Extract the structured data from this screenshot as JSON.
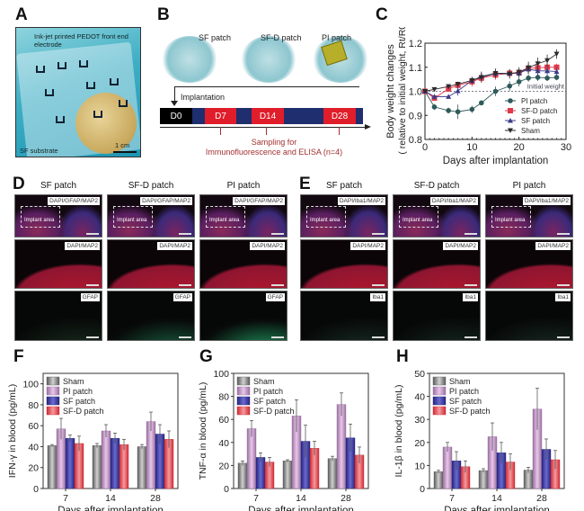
{
  "panels": {
    "A": {
      "letter": "A",
      "label_electrode": "Ink-jet printed PEDOT front end electrode",
      "label_substrate": "SF substrate",
      "scale_bar": "1 cm"
    },
    "B": {
      "letter": "B",
      "patches": [
        "SF patch",
        "SF-D patch",
        "PI patch"
      ],
      "implantation": "Implantation",
      "timeline": [
        "D0",
        "D7",
        "D14",
        "D28"
      ],
      "sampling_line1": "Sampling for",
      "sampling_line2": "Immunofluorescence and ELISA (n=4)"
    },
    "D": {
      "letter": "D",
      "columns": [
        "SF patch",
        "SF-D patch",
        "PI patch"
      ],
      "row_tags": [
        "DAPI/GFAP/MAP2",
        "DAPI/MAP2",
        "GFAP"
      ],
      "implant_label": "Implant area"
    },
    "E": {
      "letter": "E",
      "columns": [
        "SF patch",
        "SF-D patch",
        "PI patch"
      ],
      "row_tags": [
        "DAPI/Iba1/MAP2",
        "DAPI/MAP2",
        "Iba1"
      ],
      "implant_label": "Implant area"
    }
  },
  "colors": {
    "sham": "#8a8a8a",
    "pi": "#c9a3cc",
    "sf": "#3a3a9e",
    "sfd": "#e8474f",
    "pi_line": "#2f5a5a",
    "sfd_line": "#e0394a",
    "sf_line": "#3b3b8a",
    "sham_line": "#2b2b2b",
    "timeline_blue": "#1e2e6e",
    "timeline_red": "#e01d2a",
    "sampling_text": "#a33030"
  },
  "chart_data": [
    {
      "id": "C",
      "letter": "C",
      "type": "line",
      "title": "",
      "xlabel": "Days after implantation",
      "ylabel": "Body weight changes",
      "ylabel2": "( relative to initial weight, Rt/R0)",
      "xlim": [
        0,
        30
      ],
      "ylim": [
        0.8,
        1.2
      ],
      "xticks": [
        0,
        10,
        20,
        30
      ],
      "yticks": [
        0.8,
        0.9,
        1.0,
        1.1,
        1.2
      ],
      "ytick_labels": [
        "0.8",
        "0.9",
        "1.0",
        "1.1",
        "1.2"
      ],
      "reference_line": {
        "y": 1.0,
        "label": "Initial weight"
      },
      "legend": "bottom-right",
      "x": [
        0,
        2,
        5,
        7,
        10,
        12,
        15,
        18,
        20,
        22,
        24,
        26,
        28
      ],
      "series": [
        {
          "name": "PI patch",
          "marker": "circle",
          "values": [
            1.0,
            0.935,
            0.92,
            0.915,
            0.925,
            0.952,
            1.0,
            1.022,
            1.04,
            1.055,
            1.058,
            1.055,
            1.058
          ],
          "err": [
            0,
            0.012,
            0.012,
            0.03,
            0.015,
            0.008,
            0.02,
            0.02,
            0.02,
            0.015,
            0.015,
            0.012,
            0.012
          ]
        },
        {
          "name": "SF-D patch",
          "marker": "square",
          "values": [
            1.0,
            0.972,
            1.01,
            1.025,
            1.04,
            1.055,
            1.068,
            1.075,
            1.078,
            1.095,
            1.098,
            1.1,
            1.1
          ],
          "err": [
            0,
            0.012,
            0.012,
            0.015,
            0.02,
            0.02,
            0.02,
            0.015,
            0.015,
            0.02,
            0.02,
            0.015,
            0.015
          ]
        },
        {
          "name": "SF patch",
          "marker": "triangle-up",
          "values": [
            1.0,
            0.978,
            0.978,
            1.002,
            1.045,
            1.062,
            1.075,
            1.075,
            1.075,
            1.092,
            1.085,
            1.085,
            1.082
          ],
          "err": [
            0,
            0.01,
            0.008,
            0.02,
            0.015,
            0.02,
            0.015,
            0.015,
            0.015,
            0.02,
            0.02,
            0.02,
            0.015
          ]
        },
        {
          "name": "Sham",
          "marker": "triangle-down",
          "values": [
            1.0,
            1.008,
            1.02,
            1.03,
            1.045,
            1.058,
            1.075,
            1.072,
            1.08,
            1.098,
            1.115,
            1.128,
            1.155
          ],
          "err": [
            0,
            0.008,
            0.01,
            0.01,
            0.015,
            0.02,
            0.02,
            0.02,
            0.02,
            0.025,
            0.025,
            0.025,
            0.02
          ]
        }
      ]
    },
    {
      "id": "F",
      "letter": "F",
      "type": "bar",
      "categories": [
        "7",
        "14",
        "28"
      ],
      "xlabel": "Days after implantation",
      "ylabel": "IFN-γ in blood (pg/mL)",
      "ylim": [
        0,
        110
      ],
      "yticks": [
        0,
        20,
        40,
        60,
        80,
        100
      ],
      "legend": "top-left",
      "series": [
        {
          "name": "Sham",
          "values": [
            41,
            41,
            40
          ],
          "err": [
            1,
            2,
            2
          ]
        },
        {
          "name": "PI patch",
          "values": [
            57,
            55,
            64
          ],
          "err": [
            10,
            6,
            9
          ]
        },
        {
          "name": "SF patch",
          "values": [
            48,
            48,
            52
          ],
          "err": [
            3,
            5,
            9
          ]
        },
        {
          "name": "SF-D patch",
          "values": [
            43,
            42,
            47
          ],
          "err": [
            7,
            5,
            8
          ]
        }
      ]
    },
    {
      "id": "G",
      "letter": "G",
      "type": "bar",
      "categories": [
        "7",
        "14",
        "28"
      ],
      "xlabel": "Days after implantation",
      "ylabel": "TNF-α in blood (pg/mL)",
      "ylim": [
        0,
        100
      ],
      "yticks": [
        0,
        20,
        40,
        60,
        80,
        100
      ],
      "legend": "top-left",
      "series": [
        {
          "name": "Sham",
          "values": [
            22,
            24,
            26
          ],
          "err": [
            2,
            1,
            2
          ]
        },
        {
          "name": "PI patch",
          "values": [
            52,
            63,
            73
          ],
          "err": [
            7,
            14,
            10
          ]
        },
        {
          "name": "SF patch",
          "values": [
            27,
            41,
            44
          ],
          "err": [
            4,
            14,
            12
          ]
        },
        {
          "name": "SF-D patch",
          "values": [
            23,
            35,
            29
          ],
          "err": [
            4,
            6,
            7
          ]
        }
      ]
    },
    {
      "id": "H",
      "letter": "H",
      "type": "bar",
      "categories": [
        "7",
        "14",
        "28"
      ],
      "xlabel": "Days after implantation",
      "ylabel": "IL-1β in blood (pg/mL)",
      "ylim": [
        0,
        50
      ],
      "yticks": [
        0,
        10,
        20,
        30,
        40,
        50
      ],
      "legend": "top-left",
      "series": [
        {
          "name": "Sham",
          "values": [
            7.3,
            7.8,
            8.0
          ],
          "err": [
            0.6,
            0.8,
            1.2
          ]
        },
        {
          "name": "PI patch",
          "values": [
            18,
            22.5,
            34.5
          ],
          "err": [
            2,
            6,
            9
          ]
        },
        {
          "name": "SF patch",
          "values": [
            12,
            15.5,
            17
          ],
          "err": [
            4,
            4.5,
            4.5
          ]
        },
        {
          "name": "SF-D patch",
          "values": [
            9.5,
            11.5,
            12.5
          ],
          "err": [
            2.5,
            3.5,
            4
          ]
        }
      ]
    }
  ]
}
